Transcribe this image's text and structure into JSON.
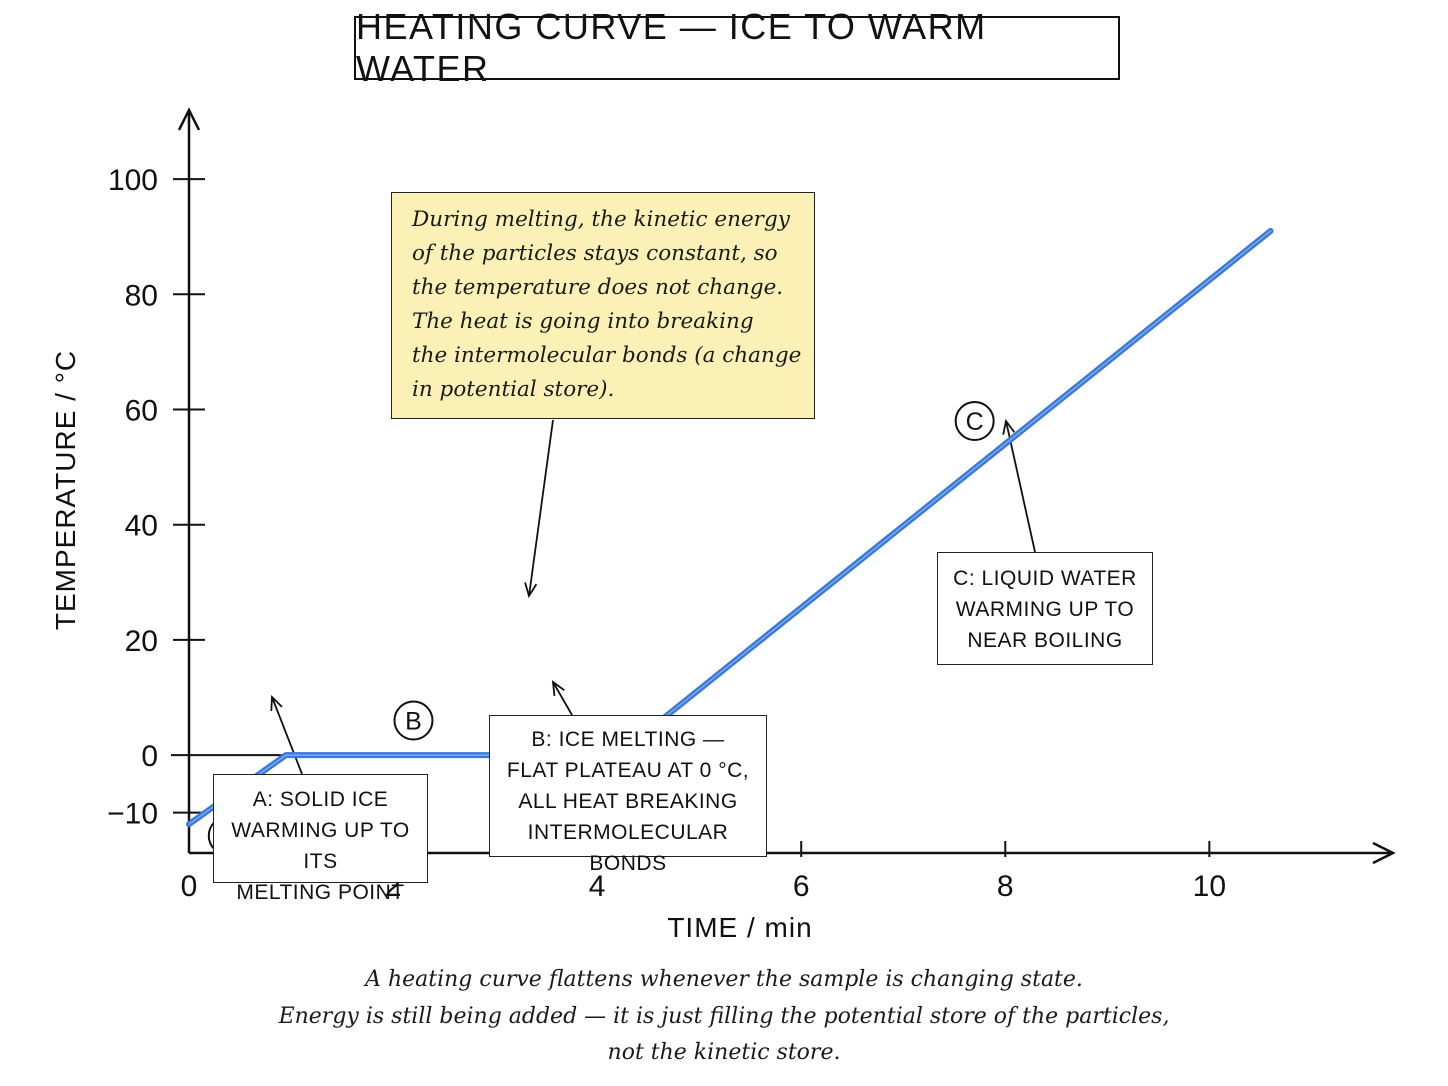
{
  "chart_data": {
    "type": "line",
    "title": "HEATING CURVE — ICE TO WARM WATER",
    "xlabel": "TIME / min",
    "ylabel": "TEMPERATURE / °C",
    "xlim": [
      0,
      11.8
    ],
    "ylim": [
      -17,
      112
    ],
    "x_ticks": [
      0,
      2,
      4,
      6,
      8,
      10
    ],
    "x_tick_labels": [
      "0",
      "2",
      "4",
      "6",
      "8",
      "10"
    ],
    "y_ticks": [
      -10,
      0,
      20,
      40,
      60,
      80,
      100
    ],
    "y_tick_labels": [
      "−10",
      "0",
      "20",
      "40",
      "60",
      "80",
      "100"
    ],
    "grid": false,
    "series": [
      {
        "color": "#3a78d8",
        "x": [
          0,
          0.95,
          4.2,
          10.6
        ],
        "y": [
          -12,
          0,
          0,
          91
        ]
      }
    ],
    "markers": [
      {
        "label": "A",
        "x": 0.38,
        "y": -14
      },
      {
        "label": "B",
        "x": 2.2,
        "y": 6
      },
      {
        "label": "C",
        "x": 7.7,
        "y": 58
      }
    ],
    "annotations": [
      {
        "id": "A",
        "lines": [
          "A: SOLID ICE",
          "WARMING UP TO ITS",
          "MELTING POINT"
        ]
      },
      {
        "id": "B",
        "lines": [
          "B: ICE MELTING —",
          "FLAT PLATEAU AT 0 °C,",
          "ALL HEAT BREAKING",
          "INTERMOLECULAR BONDS"
        ]
      },
      {
        "id": "C",
        "lines": [
          "C: LIQUID WATER",
          "WARMING UP TO",
          "NEAR BOILING"
        ]
      }
    ],
    "callout": {
      "lines": [
        "During melting, the kinetic energy",
        "of the particles stays constant, so",
        "the temperature does not change.",
        "The heat is going into breaking",
        "the intermolecular bonds (a change",
        "in potential store)."
      ]
    },
    "caption": [
      "A heating curve flattens whenever the sample is changing state.",
      "Energy is still being added — it is just filling the potential store of the particles,",
      "not the kinetic store."
    ]
  }
}
